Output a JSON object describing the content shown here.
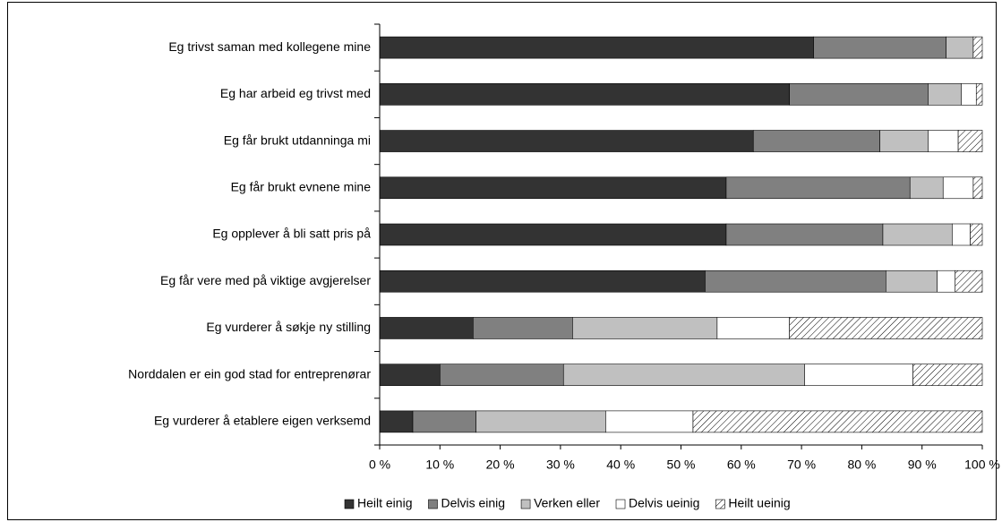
{
  "chart_data": {
    "type": "stacked-bar-horizontal",
    "categories": [
      "Eg trivst saman med kollegene mine",
      "Eg har arbeid eg trivst med",
      "Eg får brukt utdanninga mi",
      "Eg får brukt evnene mine",
      "Eg opplever å bli satt pris på",
      "Eg får vere med på viktige avgjerelser",
      "Eg vurderer å søkje ny stilling",
      "Norddalen er ein god stad for entreprenørar",
      "Eg vurderer å etablere eigen verksemd"
    ],
    "series": [
      {
        "name": "Heilt einig",
        "color": "#333333",
        "values": [
          72,
          68,
          62,
          57.5,
          57.5,
          54,
          15.5,
          10,
          5.5
        ]
      },
      {
        "name": "Delvis einig",
        "color": "#808080",
        "values": [
          22,
          23,
          21,
          30.5,
          26,
          30,
          16.5,
          20.5,
          10.5
        ]
      },
      {
        "name": "Verken eller",
        "color": "#c0c0c0",
        "values": [
          4.5,
          5.5,
          8,
          5.5,
          11.5,
          8.5,
          24,
          40,
          21.5
        ]
      },
      {
        "name": "Delvis ueinig",
        "color": "#ffffff",
        "values": [
          0,
          2.5,
          5,
          5,
          3,
          3,
          12,
          18,
          14.5
        ]
      },
      {
        "name": "Heilt ueinig",
        "color": "#ffffff",
        "pattern": "hatch",
        "values": [
          1.5,
          1,
          4,
          1.5,
          2,
          4.5,
          32,
          11.5,
          48
        ]
      }
    ],
    "xlim": [
      0,
      100
    ],
    "xticks": [
      {
        "value": 0,
        "label": "0 %"
      },
      {
        "value": 10,
        "label": "10 %"
      },
      {
        "value": 20,
        "label": "20 %"
      },
      {
        "value": 30,
        "label": "30 %"
      },
      {
        "value": 40,
        "label": "40 %"
      },
      {
        "value": 50,
        "label": "50 %"
      },
      {
        "value": 60,
        "label": "60 %"
      },
      {
        "value": 70,
        "label": "70 %"
      },
      {
        "value": 80,
        "label": "80 %"
      },
      {
        "value": 90,
        "label": "90 %"
      },
      {
        "value": 100,
        "label": "100 %"
      }
    ],
    "legend": "bottom"
  }
}
